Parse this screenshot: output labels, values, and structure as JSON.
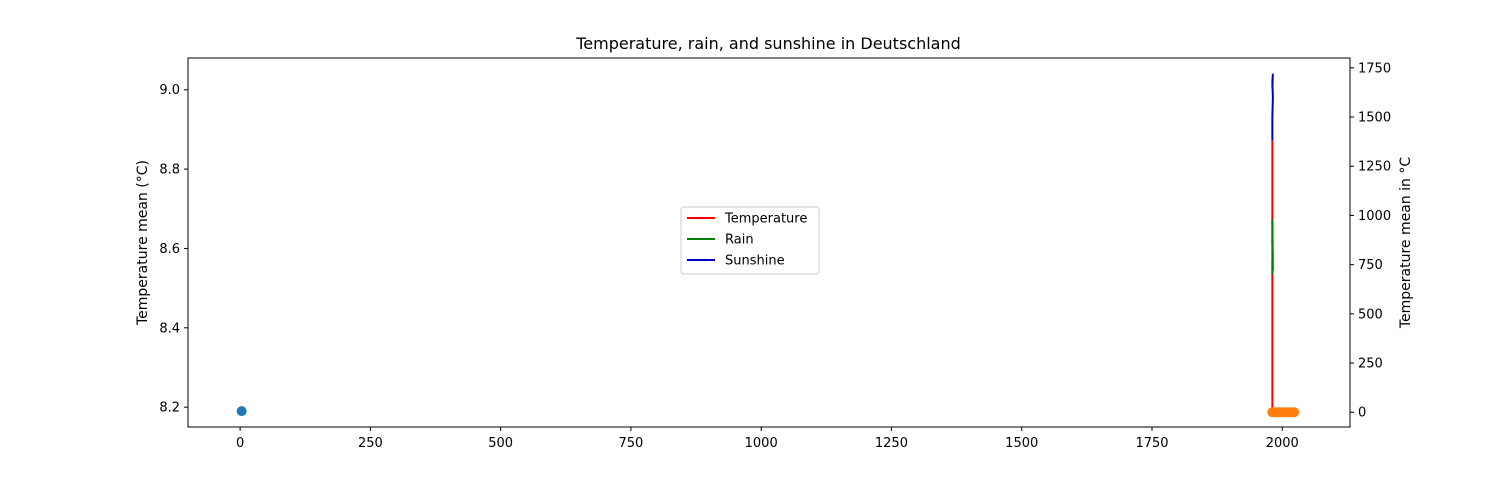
{
  "chart_data": {
    "type": "line",
    "title": "Temperature, rain, and sunshine in Deutschland",
    "xlabel": "",
    "ylabel": "Temperature mean (°C)",
    "ylabel_right": "Temperature mean in °C",
    "xlim": [
      -100,
      2130
    ],
    "ylim": [
      8.15,
      9.08
    ],
    "ylim_right": [
      -75,
      1800
    ],
    "xticks": [
      0,
      250,
      500,
      750,
      1000,
      1250,
      1500,
      1750,
      2000
    ],
    "yticks": [
      8.2,
      8.4,
      8.6,
      8.8,
      9.0
    ],
    "yticks_right": [
      0,
      250,
      500,
      750,
      1000,
      1250,
      1500,
      1750
    ],
    "legend_position": "center",
    "grid": false,
    "left_axis_series": [
      {
        "type": "scatter",
        "color": "#1f77b4",
        "points": [
          [
            3,
            8.19
          ]
        ]
      }
    ],
    "right_axis_series": [
      {
        "name": "Temperature",
        "type": "line",
        "color": "#ff0000",
        "x": [
          1981,
          1981,
          1981,
          1981,
          1981
        ],
        "y": [
          0,
          400,
          700,
          1000,
          1380
        ]
      },
      {
        "name": "Rain",
        "type": "line",
        "color": "#008000",
        "x": [
          1981,
          1981,
          1982,
          1981,
          1981,
          1982
        ],
        "y": [
          700,
          760,
          790,
          860,
          980,
          720
        ]
      },
      {
        "name": "Sunshine",
        "type": "line",
        "color": "#0000cc",
        "x": [
          1981,
          1981,
          1982,
          1981,
          1982,
          1981
        ],
        "y": [
          1380,
          1500,
          1600,
          1680,
          1720,
          1650
        ]
      },
      {
        "type": "scatter",
        "color": "#ff7f0e",
        "x": [
          1981,
          1985,
          1990,
          1995,
          2000,
          2005,
          2010,
          2015,
          2020,
          2023
        ],
        "y": [
          0,
          0,
          0,
          0,
          0,
          0,
          0,
          0,
          0,
          0
        ]
      }
    ]
  }
}
